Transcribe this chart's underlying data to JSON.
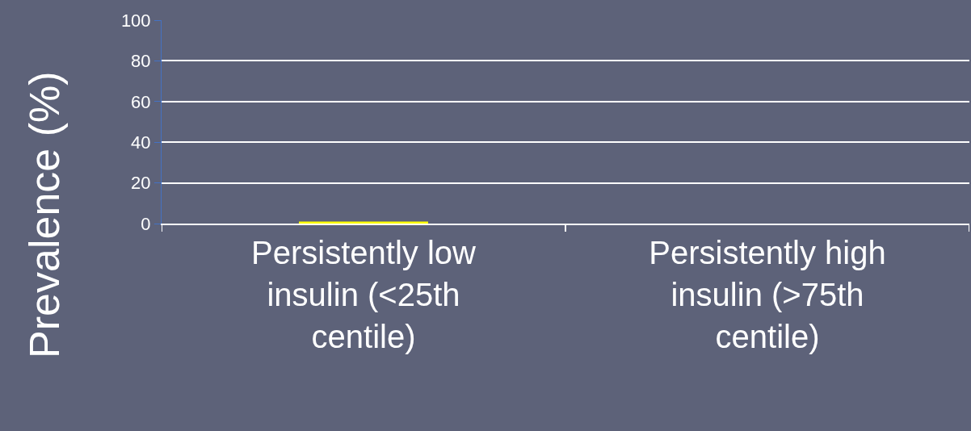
{
  "chart_data": {
    "type": "bar",
    "ylabel": "Prevalence (%)",
    "categories": [
      "Persistently low insulin (<25th centile)",
      "Persistently high insulin (>75th centile)"
    ],
    "values": [
      1,
      null
    ],
    "color": "#ffff00",
    "ylim": [
      0,
      100
    ],
    "yticks": [
      0,
      20,
      40,
      60,
      80,
      100
    ],
    "grid": "y"
  }
}
